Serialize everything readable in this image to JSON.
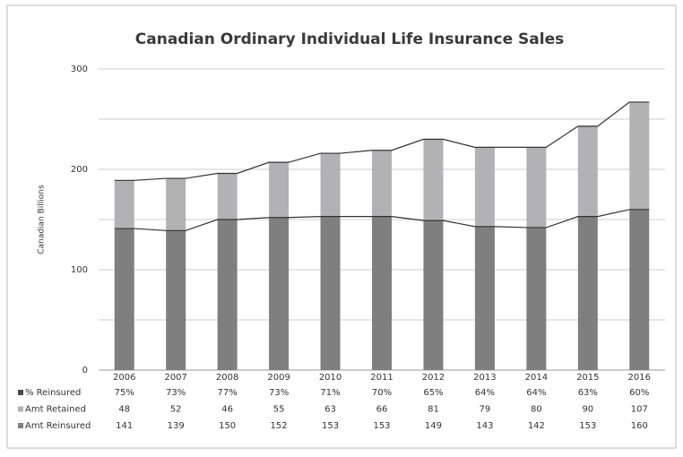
{
  "chart_data": {
    "type": "bar",
    "stacked": true,
    "title": "Canadian Ordinary Individual Life Insurance Sales",
    "y_label": "Canadian Billions",
    "categories": [
      "2006",
      "2007",
      "2008",
      "2009",
      "2010",
      "2011",
      "2012",
      "2013",
      "2014",
      "2015",
      "2016"
    ],
    "series": [
      {
        "name": "Amt Reinsured",
        "color": "#7f7f80",
        "values": [
          141,
          139,
          150,
          152,
          153,
          153,
          149,
          143,
          142,
          153,
          160
        ]
      },
      {
        "name": "Amt Retained",
        "color": "#b2b2b4",
        "values": [
          48,
          52,
          46,
          55,
          63,
          66,
          81,
          79,
          80,
          90,
          107
        ]
      }
    ],
    "table_series": [
      {
        "name": "% Reinsured",
        "color": "#4a4a4a",
        "values": [
          75,
          73,
          77,
          73,
          71,
          70,
          65,
          64,
          64,
          63,
          60
        ],
        "value_labels": [
          "75%",
          "73%",
          "77%",
          "73%",
          "71%",
          "70%",
          "65%",
          "64%",
          "64%",
          "63%",
          "60%"
        ]
      }
    ],
    "ylim": [
      0,
      300
    ],
    "yticks": [
      0,
      100,
      200,
      300
    ],
    "yminor": [
      50,
      150,
      250
    ],
    "grid": true,
    "line_color": "#333333"
  }
}
